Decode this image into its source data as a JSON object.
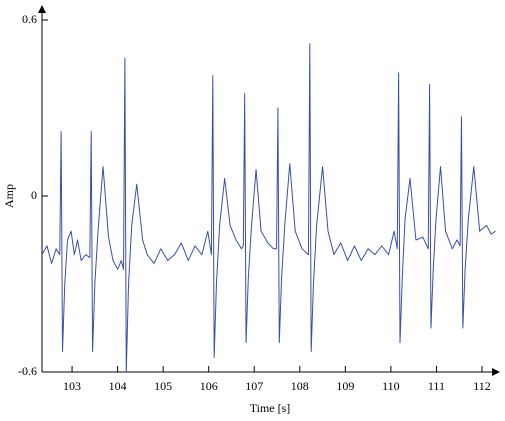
{
  "chart_data": {
    "type": "line",
    "x_label": "Time [s]",
    "y_label": "Amp",
    "xlim": [
      102.34,
      112.33
    ],
    "ylim": [
      -0.6,
      0.6
    ],
    "xticks": [
      103,
      104,
      105,
      106,
      107,
      108,
      109,
      110,
      111,
      112
    ],
    "yticks": [
      -0.6,
      0,
      0.6
    ],
    "grid": false,
    "series": [
      {
        "color": "#3a4fa8",
        "x": [
          102.34,
          102.45,
          102.55,
          102.65,
          102.73,
          102.76,
          102.79,
          102.84,
          102.9,
          102.98,
          103.05,
          103.12,
          103.2,
          103.3,
          103.39,
          103.42,
          103.45,
          103.5,
          103.57,
          103.68,
          103.8,
          103.9,
          104.0,
          104.08,
          104.13,
          104.16,
          104.19,
          104.24,
          104.31,
          104.42,
          104.55,
          104.65,
          104.8,
          104.95,
          105.1,
          105.25,
          105.4,
          105.55,
          105.7,
          105.85,
          105.98,
          106.06,
          106.09,
          106.12,
          106.17,
          106.24,
          106.35,
          106.47,
          106.6,
          106.72,
          106.76,
          106.79,
          106.82,
          106.87,
          106.94,
          107.04,
          107.15,
          107.3,
          107.42,
          107.49,
          107.52,
          107.55,
          107.6,
          107.67,
          107.78,
          107.9,
          108.05,
          108.19,
          108.22,
          108.25,
          108.3,
          108.37,
          108.5,
          108.62,
          108.75,
          108.9,
          109.05,
          109.2,
          109.35,
          109.5,
          109.65,
          109.8,
          109.95,
          110.07,
          110.14,
          110.17,
          110.2,
          110.25,
          110.31,
          110.42,
          110.55,
          110.7,
          110.82,
          110.85,
          110.88,
          110.93,
          110.99,
          111.09,
          111.2,
          111.35,
          111.45,
          111.52,
          111.55,
          111.58,
          111.63,
          111.7,
          111.82,
          111.95,
          112.1,
          112.2,
          112.3
        ],
        "values": [
          -0.2,
          -0.17,
          -0.23,
          -0.18,
          -0.2,
          0.22,
          -0.53,
          -0.3,
          -0.15,
          -0.12,
          -0.2,
          -0.15,
          -0.22,
          -0.2,
          -0.21,
          0.22,
          -0.53,
          -0.3,
          -0.12,
          0.1,
          -0.14,
          -0.22,
          -0.25,
          -0.22,
          -0.25,
          0.47,
          -0.6,
          -0.3,
          -0.1,
          0.04,
          -0.15,
          -0.2,
          -0.23,
          -0.18,
          -0.22,
          -0.2,
          -0.16,
          -0.22,
          -0.17,
          -0.2,
          -0.12,
          -0.2,
          0.41,
          -0.55,
          -0.3,
          -0.1,
          0.06,
          -0.1,
          -0.15,
          -0.18,
          -0.17,
          0.35,
          -0.5,
          -0.28,
          -0.1,
          0.09,
          -0.12,
          -0.16,
          -0.18,
          -0.18,
          0.3,
          -0.5,
          -0.28,
          -0.1,
          0.11,
          -0.12,
          -0.18,
          -0.2,
          0.52,
          -0.53,
          -0.3,
          -0.1,
          0.1,
          -0.12,
          -0.2,
          -0.16,
          -0.22,
          -0.17,
          -0.22,
          -0.18,
          -0.2,
          -0.17,
          -0.2,
          -0.12,
          -0.18,
          0.42,
          -0.5,
          -0.28,
          -0.08,
          0.06,
          -0.15,
          -0.14,
          -0.18,
          0.38,
          -0.45,
          -0.25,
          -0.08,
          0.1,
          -0.12,
          -0.18,
          -0.15,
          -0.17,
          0.27,
          -0.45,
          -0.25,
          -0.08,
          0.1,
          -0.12,
          -0.1,
          -0.13,
          -0.12
        ]
      }
    ]
  }
}
